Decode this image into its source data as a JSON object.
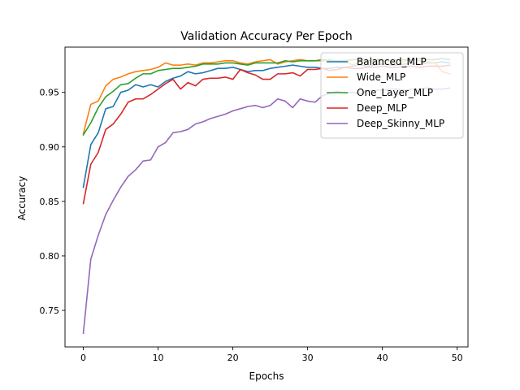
{
  "chart_data": {
    "type": "line",
    "title": "Validation Accuracy Per Epoch",
    "xlabel": "Epochs",
    "ylabel": "Accuracy",
    "xlim": [
      -2.45,
      51.45
    ],
    "ylim": [
      0.7165,
      0.9915
    ],
    "xticks": [
      0,
      10,
      20,
      30,
      40,
      50
    ],
    "yticks": [
      0.75,
      0.8,
      0.85,
      0.9,
      0.95
    ],
    "xtick_labels": [
      "0",
      "10",
      "20",
      "30",
      "40",
      "50"
    ],
    "ytick_labels": [
      "0.75",
      "0.80",
      "0.85",
      "0.90",
      "0.95"
    ],
    "grid": false,
    "legend_position": "top-right",
    "x": [
      0,
      1,
      2,
      3,
      4,
      5,
      6,
      7,
      8,
      9,
      10,
      11,
      12,
      13,
      14,
      15,
      16,
      17,
      18,
      19,
      20,
      21,
      22,
      23,
      24,
      25,
      26,
      27,
      28,
      29,
      30,
      31,
      32,
      33,
      34,
      35,
      36,
      37,
      38,
      39,
      40,
      41,
      42,
      43,
      44,
      45,
      46,
      47,
      48,
      49
    ],
    "series": [
      {
        "name": "Balanced_MLP",
        "color": "#1f77b4",
        "values": [
          0.863,
          0.902,
          0.913,
          0.935,
          0.937,
          0.95,
          0.952,
          0.957,
          0.955,
          0.957,
          0.955,
          0.96,
          0.963,
          0.965,
          0.969,
          0.967,
          0.968,
          0.97,
          0.972,
          0.972,
          0.973,
          0.971,
          0.969,
          0.97,
          0.97,
          0.972,
          0.973,
          0.974,
          0.975,
          0.974,
          0.973,
          0.973,
          0.972,
          0.972,
          0.973,
          0.973,
          0.974,
          0.975,
          0.974,
          0.975,
          0.976,
          0.975,
          0.975,
          0.976,
          0.977,
          0.976,
          0.977,
          0.977,
          0.978,
          0.977
        ]
      },
      {
        "name": "Wide_MLP",
        "color": "#ff7f0e",
        "values": [
          0.912,
          0.939,
          0.942,
          0.956,
          0.962,
          0.964,
          0.967,
          0.969,
          0.97,
          0.971,
          0.973,
          0.977,
          0.975,
          0.975,
          0.976,
          0.975,
          0.977,
          0.977,
          0.978,
          0.979,
          0.979,
          0.977,
          0.976,
          0.978,
          0.979,
          0.98,
          0.976,
          0.978,
          0.979,
          0.98,
          0.979,
          0.979,
          0.979,
          0.98,
          0.978,
          0.979,
          0.975,
          0.978,
          0.978,
          0.979,
          0.979,
          0.978,
          0.975,
          0.979,
          0.98,
          0.979,
          0.978,
          0.977,
          0.969,
          0.967
        ]
      },
      {
        "name": "One_Layer_MLP",
        "color": "#2ca02c",
        "values": [
          0.911,
          0.922,
          0.936,
          0.946,
          0.951,
          0.957,
          0.958,
          0.963,
          0.967,
          0.967,
          0.97,
          0.971,
          0.972,
          0.972,
          0.973,
          0.974,
          0.976,
          0.976,
          0.976,
          0.977,
          0.977,
          0.976,
          0.975,
          0.977,
          0.977,
          0.977,
          0.977,
          0.979,
          0.978,
          0.979,
          0.979,
          0.979,
          0.98,
          0.979,
          0.979,
          0.979,
          0.98,
          0.98,
          0.979,
          0.98,
          0.98,
          0.979,
          0.98,
          0.98,
          0.98,
          0.981,
          0.98,
          0.98,
          0.981,
          0.98
        ]
      },
      {
        "name": "Deep_MLP",
        "color": "#d62728",
        "values": [
          0.848,
          0.884,
          0.895,
          0.916,
          0.921,
          0.93,
          0.941,
          0.944,
          0.944,
          0.948,
          0.953,
          0.958,
          0.962,
          0.953,
          0.959,
          0.956,
          0.962,
          0.963,
          0.963,
          0.964,
          0.962,
          0.971,
          0.968,
          0.966,
          0.962,
          0.962,
          0.967,
          0.967,
          0.968,
          0.965,
          0.971,
          0.971,
          0.972,
          0.97,
          0.971,
          0.973,
          0.972,
          0.972,
          0.973,
          0.973,
          0.974,
          0.973,
          0.973,
          0.974,
          0.974,
          0.973,
          0.974,
          0.974,
          0.974,
          0.975
        ]
      },
      {
        "name": "Deep_Skinny_MLP",
        "color": "#9467bd",
        "values": [
          0.729,
          0.797,
          0.819,
          0.838,
          0.851,
          0.863,
          0.873,
          0.879,
          0.887,
          0.888,
          0.9,
          0.904,
          0.913,
          0.914,
          0.916,
          0.921,
          0.923,
          0.926,
          0.928,
          0.93,
          0.933,
          0.935,
          0.937,
          0.938,
          0.936,
          0.938,
          0.944,
          0.942,
          0.936,
          0.944,
          0.942,
          0.941,
          0.947,
          0.949,
          0.951,
          0.949,
          0.95,
          0.949,
          0.951,
          0.952,
          0.952,
          0.953,
          0.953,
          0.952,
          0.953,
          0.953,
          0.954,
          0.953,
          0.953,
          0.954
        ]
      }
    ]
  }
}
